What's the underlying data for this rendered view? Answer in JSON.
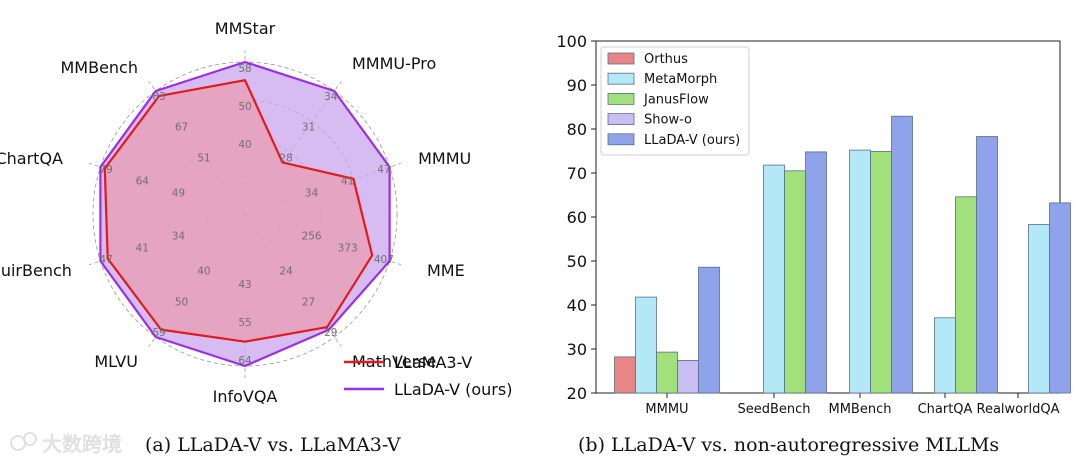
{
  "figure": {
    "captions": {
      "left": "(a) LLaDA-V vs. LLaMA3-V",
      "right": "(b) LLaDA-V vs. non-autoregressive MLLMs"
    },
    "watermark": "大数跨境"
  },
  "chart_data": [
    {
      "type": "radar",
      "title": "",
      "axes": [
        {
          "name": "MMStar",
          "ticks": [
            "40",
            "50",
            "58"
          ]
        },
        {
          "name": "MMMU-Pro",
          "ticks": [
            "28",
            "31",
            "34"
          ]
        },
        {
          "name": "MMMU",
          "ticks": [
            "34",
            "41",
            "47"
          ]
        },
        {
          "name": "MME",
          "ticks": [
            "256",
            "373",
            "407"
          ]
        },
        {
          "name": "MathVerse",
          "ticks": [
            "24",
            "27",
            "29"
          ]
        },
        {
          "name": "InfoVQA",
          "ticks": [
            "43",
            "55",
            "64"
          ]
        },
        {
          "name": "MLVU",
          "ticks": [
            "40",
            "50",
            "59"
          ]
        },
        {
          "name": "MuirBench",
          "ticks": [
            "34",
            "41",
            "47"
          ]
        },
        {
          "name": "ChartQA",
          "ticks": [
            "49",
            "64",
            "79"
          ]
        },
        {
          "name": "MMBench",
          "ticks": [
            "51",
            "67",
            "83"
          ]
        }
      ],
      "ring_count": 4,
      "series": [
        {
          "name": "LLaDA-V (ours)",
          "color": "#9a2ee6",
          "fill": "#c9a5ee",
          "values": [
            1.0,
            1.0,
            1.0,
            1.0,
            0.94,
            1.0,
            1.0,
            1.0,
            1.0,
            1.0
          ]
        },
        {
          "name": "LLaMA3-V",
          "color": "#e21a1a",
          "fill": "#e8a0b8",
          "values": [
            0.88,
            0.42,
            0.75,
            0.88,
            0.92,
            0.84,
            0.94,
            0.95,
            0.97,
            0.96
          ]
        }
      ],
      "legend_position": "bottom-right",
      "grid": true
    },
    {
      "type": "bar",
      "title": "",
      "categories": [
        "MMMU",
        "SeedBench",
        "MMBench",
        "ChartQA",
        "RealworldQA"
      ],
      "series": [
        {
          "name": "Orthus",
          "color": "#e88585",
          "values": [
            28.2,
            null,
            null,
            null,
            null
          ]
        },
        {
          "name": "MetaMorph",
          "color": "#b3e8f6",
          "values": [
            41.8,
            71.8,
            75.2,
            37.1,
            58.3
          ]
        },
        {
          "name": "JanusFlow",
          "color": "#a2e07c",
          "values": [
            29.3,
            70.5,
            74.9,
            64.6,
            null
          ]
        },
        {
          "name": "Show-o",
          "color": "#c8bef1",
          "values": [
            27.4,
            null,
            null,
            null,
            null
          ]
        },
        {
          "name": "LLaDA-V (ours)",
          "color": "#8ea3ea",
          "values": [
            48.6,
            74.8,
            82.9,
            78.3,
            63.2
          ]
        }
      ],
      "y_ticks": [
        "20",
        "30",
        "40",
        "50",
        "60",
        "70",
        "80",
        "90",
        "100"
      ],
      "ylim": [
        20,
        100
      ],
      "xlabel": "",
      "ylabel": "",
      "legend_position": "top-left",
      "grid": false
    }
  ]
}
